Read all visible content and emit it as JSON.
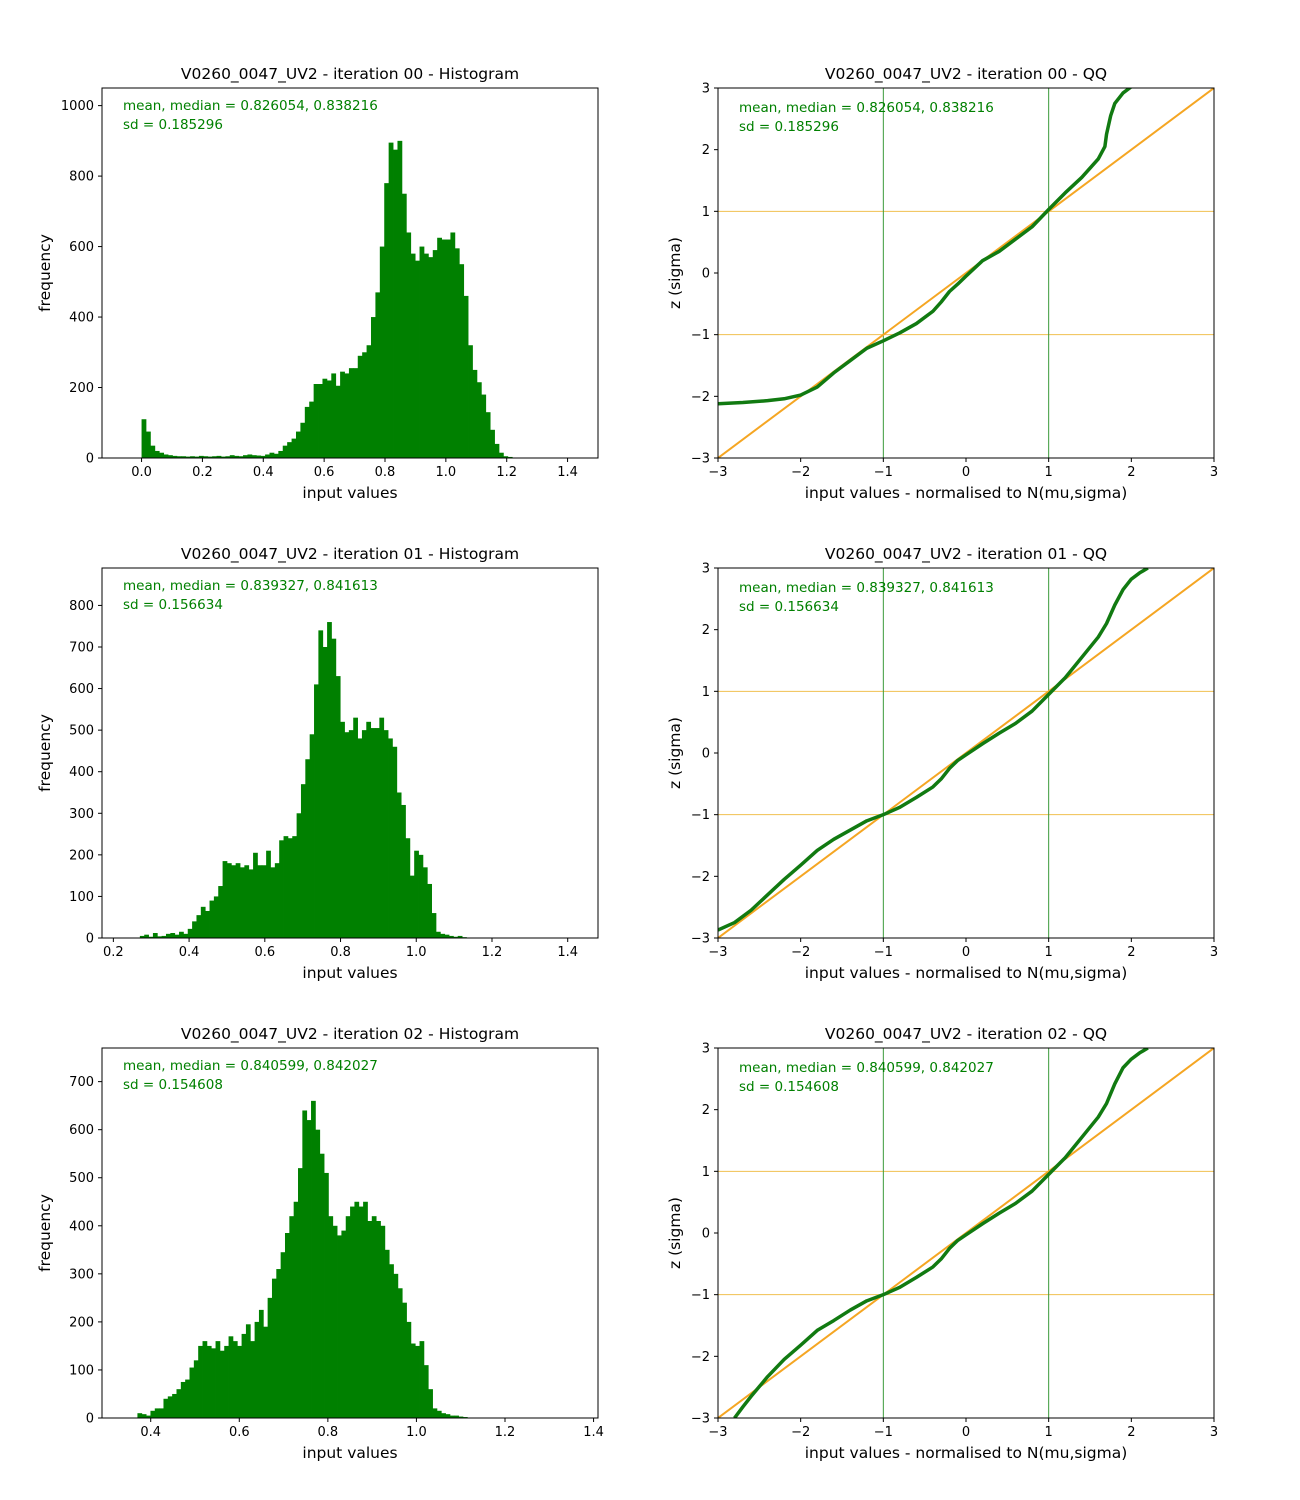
{
  "colors": {
    "bar": "#008000",
    "stats_text": "#008000",
    "qq_points": "#117a11",
    "reference_line": "#f5a623",
    "sigma_hline": "#f0c050",
    "sigma_vline": "#3a9a3a",
    "axes": "#000000"
  },
  "chart_data": [
    {
      "type": "bar",
      "title": "V0260_0047_UV2 - iteration 00 - Histogram",
      "xlabel": "input values",
      "ylabel": "frequency",
      "xlim": [
        -0.13,
        1.5
      ],
      "ylim": [
        0,
        1050
      ],
      "xticks": [
        0.0,
        0.2,
        0.4,
        0.6,
        0.8,
        1.0,
        1.2,
        1.4
      ],
      "xtick_labels": [
        "0.0",
        "0.2",
        "0.4",
        "0.6",
        "0.8",
        "1.0",
        "1.2",
        "1.4"
      ],
      "yticks": [
        0,
        200,
        400,
        600,
        800,
        1000
      ],
      "ytick_labels": [
        "0",
        "200",
        "400",
        "600",
        "800",
        "1000"
      ],
      "annotation": [
        "mean, median = 0.826054, 0.838216",
        "sd = 0.185296"
      ],
      "bins": {
        "start": 0.0,
        "width": 0.0145
      },
      "values": [
        110,
        75,
        35,
        20,
        15,
        10,
        8,
        6,
        5,
        5,
        4,
        5,
        4,
        6,
        5,
        4,
        5,
        6,
        4,
        5,
        8,
        6,
        5,
        8,
        10,
        8,
        7,
        6,
        10,
        15,
        12,
        20,
        35,
        45,
        55,
        75,
        100,
        145,
        160,
        210,
        210,
        225,
        220,
        240,
        205,
        245,
        240,
        255,
        255,
        290,
        300,
        320,
        400,
        470,
        600,
        780,
        895,
        875,
        900,
        750,
        640,
        580,
        560,
        600,
        580,
        570,
        590,
        625,
        620,
        620,
        640,
        595,
        550,
        460,
        320,
        250,
        215,
        180,
        130,
        80,
        40,
        15,
        5,
        3,
        1,
        1,
        1,
        1
      ]
    },
    {
      "type": "line",
      "title": "V0260_0047_UV2 - iteration 00 - QQ",
      "xlabel": "input values - normalised to N(mu,sigma)",
      "ylabel": "z (sigma)",
      "xlim": [
        -3,
        3
      ],
      "ylim": [
        -3,
        3
      ],
      "xticks": [
        -3,
        -2,
        -1,
        0,
        1,
        2,
        3
      ],
      "xtick_labels": [
        "−3",
        "−2",
        "−1",
        "0",
        "1",
        "2",
        "3"
      ],
      "yticks": [
        -3,
        -2,
        -1,
        0,
        1,
        2,
        3
      ],
      "ytick_labels": [
        "−3",
        "−2",
        "−1",
        "0",
        "1",
        "2",
        "3"
      ],
      "hlines": [
        -1,
        1
      ],
      "vlines": [
        -1,
        1
      ],
      "reference_line": [
        [
          -3,
          -3
        ],
        [
          3,
          3
        ]
      ],
      "annotation": [
        "mean, median = 0.826054, 0.838216",
        "sd = 0.185296"
      ],
      "series": [
        {
          "x": [
            -3.0,
            -2.7,
            -2.4,
            -2.2,
            -2.0,
            -1.8,
            -1.6,
            -1.4,
            -1.2,
            -1.0,
            -0.8,
            -0.6,
            -0.4,
            -0.3,
            -0.2,
            -0.1,
            0.0,
            0.2,
            0.4,
            0.6,
            0.8,
            1.0,
            1.2,
            1.4,
            1.5,
            1.6,
            1.68,
            1.7,
            1.75,
            1.8,
            1.9,
            2.0
          ],
          "y": [
            -2.12,
            -2.1,
            -2.07,
            -2.04,
            -1.98,
            -1.85,
            -1.62,
            -1.42,
            -1.22,
            -1.1,
            -0.97,
            -0.82,
            -0.62,
            -0.47,
            -0.3,
            -0.18,
            -0.05,
            0.2,
            0.35,
            0.55,
            0.75,
            1.03,
            1.3,
            1.55,
            1.7,
            1.85,
            2.05,
            2.25,
            2.55,
            2.75,
            2.92,
            3.02
          ]
        }
      ]
    },
    {
      "type": "bar",
      "title": "V0260_0047_UV2 - iteration 01 - Histogram",
      "xlabel": "input values",
      "ylabel": "frequency",
      "xlim": [
        0.17,
        1.48
      ],
      "ylim": [
        0,
        890
      ],
      "xticks": [
        0.2,
        0.4,
        0.6,
        0.8,
        1.0,
        1.2,
        1.4
      ],
      "xtick_labels": [
        "0.2",
        "0.4",
        "0.6",
        "0.8",
        "1.0",
        "1.2",
        "1.4"
      ],
      "yticks": [
        0,
        100,
        200,
        300,
        400,
        500,
        600,
        700,
        800
      ],
      "ytick_labels": [
        "0",
        "100",
        "200",
        "300",
        "400",
        "500",
        "600",
        "700",
        "800"
      ],
      "annotation": [
        "mean, median = 0.839327, 0.841613",
        "sd = 0.156634"
      ],
      "bins": {
        "start": 0.27,
        "width": 0.0115
      },
      "values": [
        5,
        8,
        3,
        12,
        4,
        5,
        10,
        12,
        8,
        15,
        10,
        22,
        40,
        55,
        75,
        65,
        90,
        100,
        125,
        185,
        180,
        175,
        180,
        170,
        175,
        165,
        205,
        175,
        175,
        210,
        170,
        180,
        235,
        245,
        240,
        245,
        300,
        370,
        430,
        490,
        610,
        740,
        700,
        760,
        720,
        630,
        520,
        495,
        500,
        530,
        480,
        500,
        520,
        505,
        505,
        530,
        500,
        480,
        460,
        350,
        320,
        240,
        150,
        210,
        200,
        170,
        130,
        60,
        15,
        10,
        8,
        5,
        3,
        5,
        2,
        1,
        1,
        1,
        1,
        1,
        1
      ]
    },
    {
      "type": "line",
      "title": "V0260_0047_UV2 - iteration 01 - QQ",
      "xlabel": "input values - normalised to N(mu,sigma)",
      "ylabel": "z (sigma)",
      "xlim": [
        -3,
        3
      ],
      "ylim": [
        -3,
        3
      ],
      "xticks": [
        -3,
        -2,
        -1,
        0,
        1,
        2,
        3
      ],
      "xtick_labels": [
        "−3",
        "−2",
        "−1",
        "0",
        "1",
        "2",
        "3"
      ],
      "yticks": [
        -3,
        -2,
        -1,
        0,
        1,
        2,
        3
      ],
      "ytick_labels": [
        "−3",
        "−2",
        "−1",
        "0",
        "1",
        "2",
        "3"
      ],
      "hlines": [
        -1,
        1
      ],
      "vlines": [
        -1,
        1
      ],
      "reference_line": [
        [
          -3,
          -3
        ],
        [
          3,
          3
        ]
      ],
      "annotation": [
        "mean, median = 0.839327, 0.841613",
        "sd = 0.156634"
      ],
      "series": [
        {
          "x": [
            -3.0,
            -2.8,
            -2.6,
            -2.4,
            -2.2,
            -2.0,
            -1.8,
            -1.6,
            -1.4,
            -1.2,
            -1.0,
            -0.8,
            -0.6,
            -0.4,
            -0.3,
            -0.2,
            -0.1,
            0.0,
            0.2,
            0.4,
            0.6,
            0.8,
            1.0,
            1.2,
            1.4,
            1.6,
            1.7,
            1.8,
            1.9,
            2.0,
            2.1,
            2.2
          ],
          "y": [
            -2.87,
            -2.75,
            -2.55,
            -2.3,
            -2.05,
            -1.82,
            -1.58,
            -1.4,
            -1.25,
            -1.1,
            -1.0,
            -0.88,
            -0.72,
            -0.55,
            -0.42,
            -0.25,
            -0.12,
            -0.03,
            0.15,
            0.32,
            0.48,
            0.68,
            0.95,
            1.22,
            1.55,
            1.88,
            2.1,
            2.4,
            2.65,
            2.82,
            2.92,
            3.0
          ]
        }
      ]
    },
    {
      "type": "bar",
      "title": "V0260_0047_UV2 - iteration 02 - Histogram",
      "xlabel": "input values",
      "ylabel": "frequency",
      "xlim": [
        0.29,
        1.41
      ],
      "ylim": [
        0,
        770
      ],
      "xticks": [
        0.4,
        0.6,
        0.8,
        1.0,
        1.2,
        1.4
      ],
      "xtick_labels": [
        "0.4",
        "0.6",
        "0.8",
        "1.0",
        "1.2",
        "1.4"
      ],
      "yticks": [
        0,
        100,
        200,
        300,
        400,
        500,
        600,
        700
      ],
      "ytick_labels": [
        "0",
        "100",
        "200",
        "300",
        "400",
        "500",
        "600",
        "700"
      ],
      "annotation": [
        "mean, median = 0.840599, 0.842027",
        "sd = 0.154608"
      ],
      "bins": {
        "start": 0.37,
        "width": 0.0098
      },
      "values": [
        10,
        8,
        5,
        15,
        20,
        20,
        40,
        45,
        50,
        60,
        75,
        80,
        105,
        120,
        150,
        160,
        150,
        145,
        160,
        140,
        150,
        170,
        160,
        150,
        175,
        195,
        160,
        200,
        225,
        190,
        250,
        290,
        310,
        345,
        385,
        420,
        450,
        520,
        640,
        620,
        660,
        600,
        550,
        510,
        420,
        400,
        380,
        390,
        420,
        440,
        450,
        440,
        450,
        410,
        420,
        410,
        400,
        350,
        320,
        300,
        270,
        240,
        200,
        155,
        150,
        160,
        110,
        60,
        20,
        15,
        10,
        8,
        5,
        5,
        3,
        2,
        1,
        1,
        1,
        1
      ]
    },
    {
      "type": "line",
      "title": "V0260_0047_UV2 - iteration 02 - QQ",
      "xlabel": "input values - normalised to N(mu,sigma)",
      "ylabel": "z (sigma)",
      "xlim": [
        -3,
        3
      ],
      "ylim": [
        -3,
        3
      ],
      "xticks": [
        -3,
        -2,
        -1,
        0,
        1,
        2,
        3
      ],
      "xtick_labels": [
        "−3",
        "−2",
        "−1",
        "0",
        "1",
        "2",
        "3"
      ],
      "yticks": [
        -3,
        -2,
        -1,
        0,
        1,
        2,
        3
      ],
      "ytick_labels": [
        "−3",
        "−2",
        "−1",
        "0",
        "1",
        "2",
        "3"
      ],
      "hlines": [
        -1,
        1
      ],
      "vlines": [
        -1,
        1
      ],
      "reference_line": [
        [
          -3,
          -3
        ],
        [
          3,
          3
        ]
      ],
      "annotation": [
        "mean, median = 0.840599, 0.842027",
        "sd = 0.154608"
      ],
      "series": [
        {
          "x": [
            -2.8,
            -2.7,
            -2.6,
            -2.4,
            -2.2,
            -2.0,
            -1.8,
            -1.6,
            -1.4,
            -1.2,
            -1.0,
            -0.8,
            -0.6,
            -0.4,
            -0.3,
            -0.2,
            -0.1,
            0.0,
            0.2,
            0.4,
            0.6,
            0.8,
            1.0,
            1.2,
            1.4,
            1.6,
            1.7,
            1.8,
            1.9,
            2.0,
            2.1,
            2.2
          ],
          "y": [
            -3.0,
            -2.82,
            -2.65,
            -2.33,
            -2.05,
            -1.82,
            -1.58,
            -1.42,
            -1.25,
            -1.1,
            -1.0,
            -0.88,
            -0.72,
            -0.55,
            -0.42,
            -0.25,
            -0.12,
            -0.03,
            0.15,
            0.32,
            0.48,
            0.68,
            0.95,
            1.22,
            1.55,
            1.88,
            2.1,
            2.42,
            2.68,
            2.82,
            2.92,
            3.0
          ]
        }
      ]
    }
  ]
}
